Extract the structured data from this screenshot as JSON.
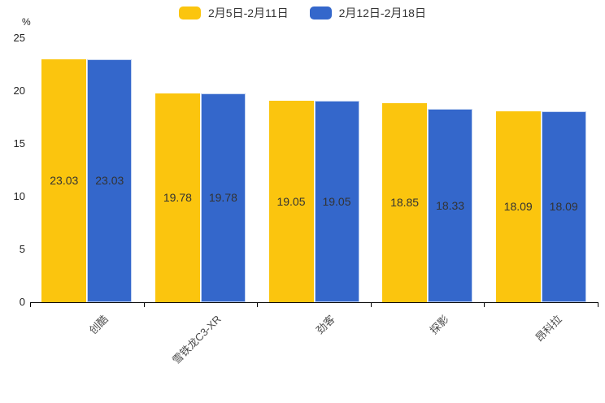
{
  "chart_data": {
    "type": "bar",
    "title": "",
    "categories": [
      "创酷",
      "雪铁龙C3-XR",
      "劲客",
      "探影",
      "昂科拉"
    ],
    "series": [
      {
        "name": "2月5日-2月11日",
        "color": "#FBC50E",
        "border": "",
        "values": [
          23.03,
          19.78,
          19.05,
          18.85,
          18.09
        ]
      },
      {
        "name": "2月12日-2月18日",
        "color": "#3467CB",
        "border": "#C3D4F1",
        "values": [
          23.03,
          19.78,
          19.05,
          18.33,
          18.09
        ]
      }
    ],
    "xlabel": "",
    "ylabel": "%",
    "ylim": [
      0,
      25
    ],
    "yticks": [
      0,
      5,
      10,
      15,
      20,
      25
    ],
    "grid": false,
    "legend_position": "top",
    "value_labels": "inside-center",
    "x_label_rotation": 45
  }
}
